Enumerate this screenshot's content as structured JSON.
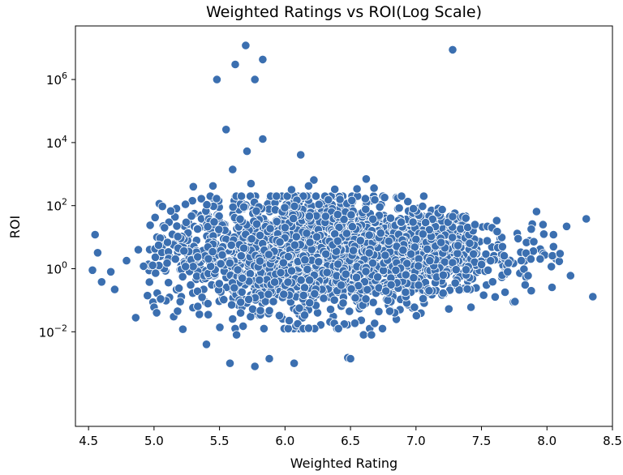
{
  "chart_data": {
    "type": "scatter",
    "title": "Weighted Ratings vs ROI(Log Scale)",
    "xlabel": "Weighted Rating",
    "ylabel": "ROI",
    "xlim": [
      4.4,
      8.5
    ],
    "ylim": [
      1e-05,
      50000000
    ],
    "y_scale": "log",
    "grid": false,
    "legend": "none",
    "marker_color": "#3b6fb0",
    "x_ticks": [
      {
        "value": 4.5,
        "label": "4.5"
      },
      {
        "value": 5.0,
        "label": "5.0"
      },
      {
        "value": 5.5,
        "label": "5.5"
      },
      {
        "value": 6.0,
        "label": "6.0"
      },
      {
        "value": 6.5,
        "label": "6.5"
      },
      {
        "value": 7.0,
        "label": "7.0"
      },
      {
        "value": 7.5,
        "label": "7.5"
      },
      {
        "value": 8.0,
        "label": "8.0"
      },
      {
        "value": 8.5,
        "label": "8.5"
      }
    ],
    "y_ticks": [
      {
        "value": 0.01,
        "base": "10",
        "exp": "−2"
      },
      {
        "value": 1,
        "base": "10",
        "exp": "0"
      },
      {
        "value": 100,
        "base": "10",
        "exp": "2"
      },
      {
        "value": 10000,
        "base": "10",
        "exp": "4"
      },
      {
        "value": 1000000,
        "base": "10",
        "exp": "6"
      }
    ],
    "points": [
      [
        5.7,
        12000000
      ],
      [
        5.62,
        3000000
      ],
      [
        5.83,
        4300000
      ],
      [
        5.48,
        1000000
      ],
      [
        5.77,
        1000000
      ],
      [
        7.28,
        8800000
      ],
      [
        5.55,
        26000
      ],
      [
        5.83,
        13000
      ],
      [
        5.71,
        5300
      ],
      [
        6.12,
        4100
      ],
      [
        5.6,
        1400
      ],
      [
        5.3,
        400
      ],
      [
        5.45,
        420
      ],
      [
        5.74,
        500
      ],
      [
        6.22,
        650
      ],
      [
        6.62,
        700
      ],
      [
        6.55,
        340
      ],
      [
        6.68,
        360
      ],
      [
        6.05,
        320
      ],
      [
        6.38,
        330
      ],
      [
        6.18,
        420
      ],
      [
        4.55,
        12
      ],
      [
        4.57,
        3.2
      ],
      [
        4.53,
        0.9
      ],
      [
        4.6,
        0.38
      ],
      [
        4.67,
        0.8
      ],
      [
        4.7,
        0.22
      ],
      [
        4.79,
        1.8
      ],
      [
        4.86,
        0.028
      ],
      [
        4.88,
        4
      ],
      [
        4.92,
        1.2
      ],
      [
        4.95,
        0.14
      ],
      [
        5.0,
        0.06
      ],
      [
        5.02,
        0.04
      ],
      [
        5.05,
        0.11
      ],
      [
        5.08,
        20
      ],
      [
        5.1,
        1.5
      ],
      [
        5.15,
        0.03
      ],
      [
        5.18,
        0.045
      ],
      [
        5.2,
        0.09
      ],
      [
        5.22,
        0.012
      ],
      [
        5.24,
        110
      ],
      [
        5.4,
        0.004
      ],
      [
        5.58,
        0.001
      ],
      [
        5.63,
        0.008
      ],
      [
        5.68,
        0.015
      ],
      [
        5.77,
        0.0008
      ],
      [
        5.88,
        0.0014
      ],
      [
        6.07,
        0.001
      ],
      [
        6.18,
        0.013
      ],
      [
        6.48,
        0.0015
      ],
      [
        6.5,
        0.0014
      ],
      [
        6.6,
        0.008
      ],
      [
        6.66,
        0.008
      ],
      [
        6.8,
        0.045
      ],
      [
        6.92,
        0.18
      ],
      [
        7.02,
        0.3
      ],
      [
        7.1,
        0.2
      ],
      [
        7.3,
        0.35
      ],
      [
        7.42,
        0.06
      ],
      [
        7.55,
        0.9
      ],
      [
        7.7,
        0.8
      ],
      [
        7.68,
        0.18
      ],
      [
        7.88,
        0.2
      ],
      [
        8.18,
        0.6
      ],
      [
        8.35,
        0.13
      ],
      [
        6.89,
        200
      ],
      [
        6.98,
        80
      ],
      [
        7.05,
        95
      ],
      [
        7.2,
        75
      ],
      [
        7.38,
        40
      ],
      [
        7.28,
        45
      ],
      [
        7.45,
        25
      ],
      [
        7.58,
        20
      ],
      [
        7.62,
        15
      ],
      [
        7.78,
        9
      ],
      [
        7.88,
        18
      ],
      [
        7.92,
        65
      ],
      [
        7.97,
        25
      ],
      [
        8.05,
        12
      ],
      [
        8.15,
        22
      ],
      [
        8.3,
        38
      ],
      [
        8.05,
        5
      ],
      [
        8.1,
        3
      ]
    ],
    "cluster_seed": 12345,
    "cluster_count": 2600
  }
}
